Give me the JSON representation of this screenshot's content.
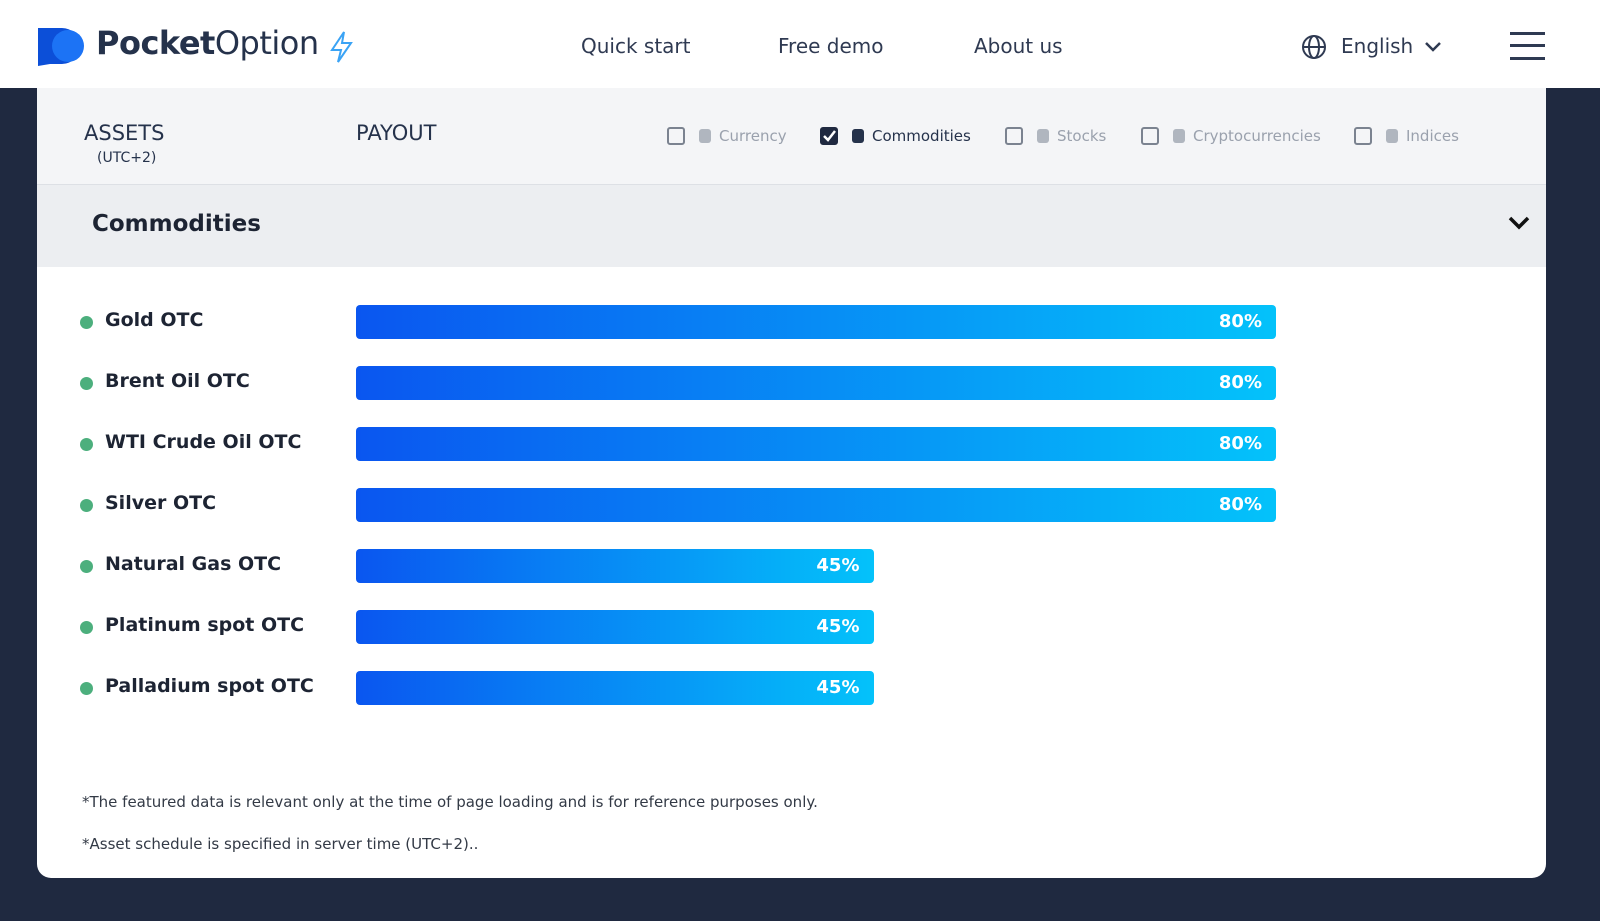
{
  "header": {
    "brand_bold": "Pocket",
    "brand_regular": "Option",
    "nav": [
      "Quick start",
      "Free demo",
      "About us"
    ],
    "language": "English"
  },
  "table": {
    "assets_heading": "ASSETS",
    "timezone": "(UTC+2)",
    "payout_heading": "PAYOUT",
    "filters": [
      {
        "label": "Currency",
        "checked": false
      },
      {
        "label": "Commodities",
        "checked": true
      },
      {
        "label": "Stocks",
        "checked": false
      },
      {
        "label": "Cryptocurrencies",
        "checked": false
      },
      {
        "label": "Indices",
        "checked": false
      }
    ],
    "section": "Commodities",
    "assets": [
      {
        "name": "Gold OTC",
        "payout": 80,
        "payout_label": "80%"
      },
      {
        "name": "Brent Oil OTC",
        "payout": 80,
        "payout_label": "80%"
      },
      {
        "name": "WTI Crude Oil OTC",
        "payout": 80,
        "payout_label": "80%"
      },
      {
        "name": "Silver OTC",
        "payout": 80,
        "payout_label": "80%"
      },
      {
        "name": "Natural Gas OTC",
        "payout": 45,
        "payout_label": "45%"
      },
      {
        "name": "Platinum spot OTC",
        "payout": 45,
        "payout_label": "45%"
      },
      {
        "name": "Palladium spot OTC",
        "payout": 45,
        "payout_label": "45%"
      }
    ],
    "notes": [
      "*The featured data is relevant only at the time of page loading and is for reference purposes only.",
      "*Asset schedule is specified in server time (UTC+2).."
    ]
  }
}
